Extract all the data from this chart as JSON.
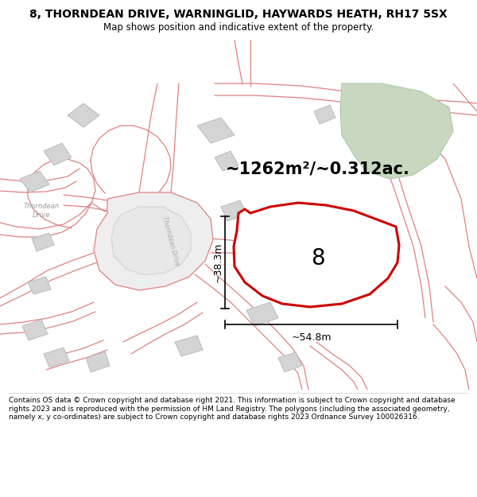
{
  "title": "8, THORNDEAN DRIVE, WARNINGLID, HAYWARDS HEATH, RH17 5SX",
  "subtitle": "Map shows position and indicative extent of the property.",
  "footer": "Contains OS data © Crown copyright and database right 2021. This information is subject to Crown copyright and database rights 2023 and is reproduced with the permission of HM Land Registry. The polygons (including the associated geometry, namely x, y co-ordinates) are subject to Crown copyright and database rights 2023 Ordnance Survey 100026316.",
  "area_label": "~1262m²/~0.312ac.",
  "plot_number": "8",
  "width_label": "~54.8m",
  "height_label": "~38.3m",
  "plot_outline_color": "#cc0000",
  "road_color": "#e08080",
  "building_color": "#d4d4d4",
  "building_edge": "#bbbbbb",
  "green_color": "#c8d8c0",
  "green_edge": "#b0c8a8",
  "map_bg": "#fafafa",
  "thorndean_label": "Thorndean\nDrive",
  "thorndean_road_label": "Thorndean Drive",
  "title_fontsize": 10,
  "subtitle_fontsize": 8.5,
  "footer_fontsize": 6.5,
  "area_fontsize": 15,
  "plot_num_fontsize": 20,
  "dim_fontsize": 9
}
